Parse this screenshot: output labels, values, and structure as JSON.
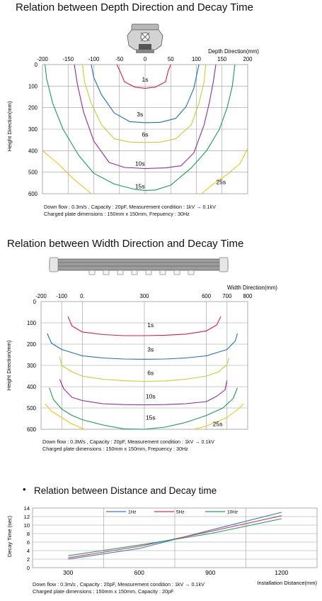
{
  "depth_section": {
    "title": "Relation between Depth Direction and Decay Time",
    "note_line1": "Down flow : 0.3m/s , Capacity : 20pF, Measurement condition : 1kV → 0.1kV",
    "note_line2": "Charged plate dimensions : 150mm x 150mm, Frepuency : 30Hz"
  },
  "width_section": {
    "title": "Relation between Width Direction and Decay Time",
    "note_line1": "Down flow : 0.3M/s , Capacity : 20pF, Measurement condition : 1kV → 0.1kV",
    "note_line2": "Charged plate dimensions : 150mm x 150mm, Frepuency : 30Hz"
  },
  "distance_section": {
    "bullet": "•",
    "title": "Relation between Distance and Decay time",
    "note_line1": "Down flow : 0.3m/s , Capacity : 20pF, Measurement condition : 1kV → 0.1kV",
    "note_line2": "Charged plate dimensions : 150mm x 150mm, Capacity : 20pF"
  },
  "colors": {
    "1s": "#d81b4a",
    "3s": "#1f6fb0",
    "6s": "#c2d12e",
    "10s": "#8e2a9a",
    "15s": "#1a9a58",
    "25s": "#f2c21a",
    "grid": "#9a9a9a",
    "1Hz": "#2d7fc1",
    "5Hz": "#d1344f",
    "10Hz": "#22a06b"
  },
  "chart_data": [
    {
      "type": "line",
      "xlabel": "Depth Direction(mm)",
      "ylabel": "Height Direction(mm)",
      "x_ticks": [
        "-200",
        "-150",
        "-100",
        "-50",
        "0",
        "50",
        "100",
        "150",
        "200"
      ],
      "y_ticks": [
        "0",
        "100",
        "200",
        "300",
        "400",
        "500",
        "600"
      ],
      "xlim": [
        -200,
        200
      ],
      "ylim": [
        0,
        600
      ],
      "y_inverted": true,
      "grid": true,
      "series": [
        {
          "name": "1s",
          "points": [
            [
              -55,
              0
            ],
            [
              -50,
              25
            ],
            [
              -40,
              80
            ],
            [
              -20,
              105
            ],
            [
              0,
              110
            ],
            [
              20,
              105
            ],
            [
              40,
              80
            ],
            [
              45,
              30
            ],
            [
              50,
              0
            ]
          ]
        },
        {
          "name": "3s",
          "points": [
            [
              -105,
              0
            ],
            [
              -100,
              60
            ],
            [
              -85,
              140
            ],
            [
              -60,
              225
            ],
            [
              -30,
              265
            ],
            [
              0,
              270
            ],
            [
              30,
              268
            ],
            [
              60,
              250
            ],
            [
              80,
              195
            ],
            [
              95,
              110
            ],
            [
              100,
              55
            ],
            [
              105,
              0
            ]
          ]
        },
        {
          "name": "6s",
          "points": [
            [
              -122,
              0
            ],
            [
              -118,
              80
            ],
            [
              -105,
              180
            ],
            [
              -85,
              280
            ],
            [
              -60,
              345
            ],
            [
              -30,
              360
            ],
            [
              0,
              362
            ],
            [
              30,
              360
            ],
            [
              60,
              345
            ],
            [
              90,
              280
            ],
            [
              105,
              180
            ],
            [
              115,
              80
            ],
            [
              118,
              0
            ]
          ]
        },
        {
          "name": "10s",
          "points": [
            [
              -138,
              0
            ],
            [
              -132,
              90
            ],
            [
              -120,
              220
            ],
            [
              -100,
              355
            ],
            [
              -70,
              455
            ],
            [
              -40,
              478
            ],
            [
              0,
              483
            ],
            [
              40,
              480
            ],
            [
              70,
              470
            ],
            [
              95,
              410
            ],
            [
              115,
              280
            ],
            [
              125,
              180
            ],
            [
              133,
              80
            ],
            [
              138,
              0
            ]
          ]
        },
        {
          "name": "15s",
          "points": [
            [
              -195,
              0
            ],
            [
              -192,
              65
            ],
            [
              -180,
              180
            ],
            [
              -160,
              300
            ],
            [
              -130,
              420
            ],
            [
              -100,
              505
            ],
            [
              -60,
              555
            ],
            [
              -20,
              580
            ],
            [
              0,
              585
            ],
            [
              20,
              583
            ],
            [
              50,
              560
            ],
            [
              90,
              480
            ],
            [
              120,
              400
            ],
            [
              145,
              300
            ],
            [
              160,
              200
            ],
            [
              170,
              100
            ],
            [
              175,
              0
            ]
          ]
        },
        {
          "name": "25s",
          "points": [
            [
              -200,
              400
            ],
            [
              -170,
              460
            ],
            [
              -140,
              530
            ],
            [
              -110,
              590
            ],
            [
              -105,
              600
            ]
          ]
        },
        {
          "name": "25s",
          "points": [
            [
              110,
              600
            ],
            [
              130,
              560
            ],
            [
              160,
              510
            ],
            [
              185,
              460
            ],
            [
              200,
              390
            ]
          ]
        }
      ],
      "labels": [
        {
          "text": "1s",
          "x": 0,
          "y": 70
        },
        {
          "text": "3s",
          "x": -10,
          "y": 230
        },
        {
          "text": "6s",
          "x": 0,
          "y": 325
        },
        {
          "text": "10s",
          "x": -10,
          "y": 460
        },
        {
          "text": "15s",
          "x": -10,
          "y": 565
        },
        {
          "text": "25s",
          "x": 148,
          "y": 545
        }
      ]
    },
    {
      "type": "line",
      "xlabel": "Width Direction(mm)",
      "ylabel": "Height Direction(mm)",
      "x_ticks": [
        {
          "label": "-200",
          "value": -200
        },
        {
          "label": "-100",
          "value": -100
        },
        {
          "label": "0.",
          "value": 0
        },
        {
          "label": "300",
          "value": 300
        },
        {
          "label": "600",
          "value": 600
        },
        {
          "label": "700",
          "value": 700
        },
        {
          "label": "800",
          "value": 800
        }
      ],
      "y_ticks": [
        "0",
        "100",
        "200",
        "300",
        "400",
        "500",
        "600"
      ],
      "xlim": [
        -200,
        800
      ],
      "ylim": [
        0,
        600
      ],
      "y_inverted": true,
      "grid": true,
      "series": [
        {
          "name": "1s",
          "points": [
            [
              -70,
              70
            ],
            [
              -50,
              115
            ],
            [
              0,
              143
            ],
            [
              100,
              155
            ],
            [
              200,
              160
            ],
            [
              300,
              160
            ],
            [
              400,
              158
            ],
            [
              500,
              153
            ],
            [
              600,
              138
            ],
            [
              650,
              110
            ],
            [
              670,
              70
            ]
          ]
        },
        {
          "name": "3s",
          "points": [
            [
              -170,
              150
            ],
            [
              -150,
              195
            ],
            [
              -100,
              225
            ],
            [
              0,
              255
            ],
            [
              100,
              265
            ],
            [
              200,
              270
            ],
            [
              300,
              271
            ],
            [
              400,
              270
            ],
            [
              500,
              265
            ],
            [
              600,
              255
            ],
            [
              700,
              225
            ],
            [
              740,
              185
            ],
            [
              750,
              150
            ]
          ]
        },
        {
          "name": "6s",
          "points": [
            [
              -110,
              260
            ],
            [
              -100,
              300
            ],
            [
              -50,
              330
            ],
            [
              0,
              350
            ],
            [
              100,
              365
            ],
            [
              200,
              372
            ],
            [
              300,
              375
            ],
            [
              400,
              373
            ],
            [
              500,
              365
            ],
            [
              600,
              350
            ],
            [
              660,
              330
            ],
            [
              700,
              295
            ],
            [
              710,
              265
            ]
          ]
        },
        {
          "name": "10s",
          "points": [
            [
              -110,
              365
            ],
            [
              -90,
              410
            ],
            [
              -50,
              450
            ],
            [
              0,
              465
            ],
            [
              100,
              480
            ],
            [
              200,
              484
            ],
            [
              300,
              485
            ],
            [
              400,
              484
            ],
            [
              500,
              480
            ],
            [
              600,
              470
            ],
            [
              650,
              445
            ],
            [
              690,
              415
            ],
            [
              700,
              370
            ]
          ]
        },
        {
          "name": "15s",
          "points": [
            [
              -160,
              405
            ],
            [
              -140,
              460
            ],
            [
              -100,
              505
            ],
            [
              -50,
              535
            ],
            [
              0,
              555
            ],
            [
              100,
              580
            ],
            [
              200,
              598
            ],
            [
              300,
              600
            ],
            [
              400,
              590
            ],
            [
              500,
              568
            ],
            [
              600,
              535
            ],
            [
              680,
              500
            ],
            [
              730,
              455
            ],
            [
              750,
              405
            ]
          ]
        },
        {
          "name": "25s",
          "points": [
            [
              -180,
              480
            ],
            [
              -150,
              515
            ],
            [
              -100,
              545
            ],
            [
              -50,
              575
            ],
            [
              10,
              600
            ]
          ]
        },
        {
          "name": "25s",
          "points": [
            [
              540,
              600
            ],
            [
              600,
              585
            ],
            [
              700,
              545
            ],
            [
              760,
              500
            ],
            [
              780,
              480
            ]
          ]
        }
      ],
      "labels": [
        {
          "text": "1s",
          "x": 330,
          "y": 110
        },
        {
          "text": "3s",
          "x": 330,
          "y": 225
        },
        {
          "text": "6s",
          "x": 330,
          "y": 335
        },
        {
          "text": "10s",
          "x": 330,
          "y": 445
        },
        {
          "text": "15s",
          "x": 330,
          "y": 545
        },
        {
          "text": "25s",
          "x": 655,
          "y": 575
        }
      ]
    },
    {
      "type": "line",
      "xlabel": "Installation Distance(mm)",
      "ylabel": "Decay Time (sec)",
      "x": [
        300,
        600,
        900,
        1200
      ],
      "x_ticks": [
        "300",
        "600",
        "900",
        "1200"
      ],
      "y_ticks": [
        "0",
        "2",
        "4",
        "6",
        "8",
        "10",
        "12",
        "14"
      ],
      "xlim": [
        150,
        1350
      ],
      "ylim": [
        0,
        14
      ],
      "grid": true,
      "legend": "top",
      "series": [
        {
          "name": "1Hz",
          "values": [
            2.0,
            4.5,
            8.8,
            13.0
          ]
        },
        {
          "name": "5Hz",
          "values": [
            2.3,
            5.0,
            8.5,
            12.2
          ]
        },
        {
          "name": "10Hz",
          "values": [
            2.8,
            5.3,
            8.0,
            11.5
          ]
        }
      ]
    }
  ]
}
